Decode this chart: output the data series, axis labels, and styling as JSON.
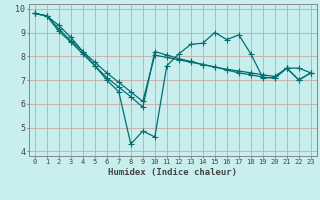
{
  "xlabel": "Humidex (Indice chaleur)",
  "bg_color": "#c8eeee",
  "grid_color": "#c8a8a8",
  "line_color": "#007070",
  "xlim": [
    -0.5,
    23.5
  ],
  "ylim": [
    3.8,
    10.2
  ],
  "yticks": [
    4,
    5,
    6,
    7,
    8,
    9,
    10
  ],
  "xticks": [
    0,
    1,
    2,
    3,
    4,
    5,
    6,
    7,
    8,
    9,
    10,
    11,
    12,
    13,
    14,
    15,
    16,
    17,
    18,
    19,
    20,
    21,
    22,
    23
  ],
  "line1_x": [
    0,
    1,
    2,
    3,
    4,
    5,
    6,
    7,
    8,
    9,
    10,
    11,
    12,
    13,
    14,
    15,
    16,
    17,
    18,
    19,
    20,
    21,
    22,
    23
  ],
  "line1_y": [
    9.8,
    9.7,
    9.3,
    8.8,
    8.2,
    7.6,
    7.0,
    6.5,
    4.3,
    4.85,
    4.6,
    7.6,
    8.1,
    8.5,
    8.55,
    9.0,
    8.7,
    8.9,
    8.1,
    7.1,
    7.1,
    7.5,
    7.5,
    7.3
  ],
  "line2_x": [
    0,
    1,
    2,
    3,
    4,
    5,
    6,
    7,
    8,
    9,
    10,
    11,
    12,
    13,
    14,
    15,
    16,
    17,
    18,
    19,
    20,
    21,
    22,
    23
  ],
  "line2_y": [
    9.8,
    9.7,
    9.15,
    8.65,
    8.2,
    7.75,
    7.3,
    6.9,
    6.5,
    6.1,
    8.05,
    7.95,
    7.85,
    7.75,
    7.65,
    7.55,
    7.45,
    7.38,
    7.3,
    7.22,
    7.15,
    7.5,
    7.0,
    7.3
  ],
  "line3_x": [
    0,
    1,
    2,
    3,
    4,
    5,
    6,
    7,
    8,
    9,
    10,
    11,
    12,
    13,
    14,
    15,
    16,
    17,
    18,
    19,
    20,
    21,
    22,
    23
  ],
  "line3_y": [
    9.8,
    9.7,
    9.05,
    8.6,
    8.1,
    7.6,
    7.1,
    6.7,
    6.3,
    5.85,
    8.2,
    8.05,
    7.9,
    7.78,
    7.65,
    7.55,
    7.42,
    7.3,
    7.22,
    7.12,
    7.08,
    7.5,
    7.0,
    7.3
  ],
  "spine_color": "#888888",
  "tick_color": "#444444",
  "xlabel_fontsize": 6.5,
  "ytick_fontsize": 6,
  "xtick_fontsize": 5
}
